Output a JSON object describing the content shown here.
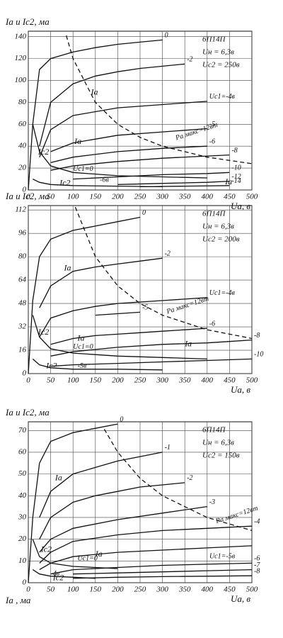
{
  "chart_data": [
    {
      "type": "line",
      "ylabel": "Ia и Ic2, ма",
      "xlabel": "Ua, в",
      "info": [
        "6П14П",
        "Uн = 6,3в",
        "Uc2 = 250в"
      ],
      "xlim": [
        0,
        500
      ],
      "ylim": [
        0,
        145
      ],
      "xticks": [
        0,
        50,
        100,
        150,
        200,
        250,
        300,
        350,
        400,
        450,
        500
      ],
      "yticks": [
        0,
        20,
        40,
        60,
        80,
        100,
        120,
        140
      ],
      "grid": true,
      "series": [
        {
          "name": "0",
          "color": "#111",
          "x": [
            0,
            10,
            25,
            50,
            100,
            150,
            200,
            250,
            300
          ],
          "values": [
            0,
            60,
            110,
            120,
            126,
            130,
            133,
            135,
            137
          ]
        },
        {
          "name": "-2",
          "color": "#111",
          "x": [
            25,
            50,
            100,
            150,
            200,
            250,
            300,
            350
          ],
          "values": [
            40,
            80,
            97,
            104,
            108,
            111,
            113,
            115
          ]
        },
        {
          "name": "Uc1=-4в",
          "color": "#111",
          "x": [
            25,
            50,
            100,
            200,
            300,
            400
          ],
          "values": [
            30,
            55,
            68,
            75,
            78,
            81
          ]
        },
        {
          "name": "-5",
          "color": "#111",
          "x": [
            50,
            100,
            200,
            300,
            400
          ],
          "values": [
            35,
            43,
            50,
            53,
            56
          ]
        },
        {
          "name": "-6",
          "color": "#111",
          "x": [
            50,
            100,
            200,
            300,
            400
          ],
          "values": [
            25,
            30,
            35,
            38,
            40
          ]
        },
        {
          "name": "-8",
          "color": "#111",
          "x": [
            50,
            100,
            200,
            300,
            400,
            450
          ],
          "values": [
            18,
            22,
            26,
            29,
            31,
            32
          ]
        },
        {
          "name": "-10",
          "color": "#111",
          "x": [
            100,
            200,
            300,
            400,
            450
          ],
          "values": [
            10,
            12,
            14,
            15,
            16
          ]
        },
        {
          "name": "-12",
          "color": "#111",
          "x": [
            200,
            300,
            400,
            450
          ],
          "values": [
            5,
            6,
            7,
            8
          ]
        },
        {
          "name": "-14",
          "color": "#111",
          "x": [
            250,
            350,
            450
          ],
          "values": [
            3,
            3.5,
            4
          ]
        },
        {
          "name": "Uc1=0",
          "color": "#111",
          "x": [
            10,
            25,
            50,
            100,
            200,
            300,
            400
          ],
          "values": [
            60,
            35,
            22,
            16,
            13,
            12,
            11
          ]
        },
        {
          "name": "-6в",
          "color": "#111",
          "x": [
            10,
            25,
            50,
            100,
            200,
            300
          ],
          "values": [
            10,
            7,
            5,
            4,
            3.5,
            3
          ]
        },
        {
          "name": "Pa макс=12вт",
          "color": "#111",
          "dashed": true,
          "x": [
            85,
            100,
            150,
            200,
            250,
            300,
            400,
            500
          ],
          "values": [
            141,
            120,
            80,
            60,
            48,
            40,
            30,
            24
          ]
        }
      ],
      "annotations": [
        "Ia",
        "Ia",
        "Ia",
        "Ic2",
        "Ic2"
      ]
    },
    {
      "type": "line",
      "ylabel": "Ia и Ic2, ма",
      "xlabel": "Ua, в",
      "info": [
        "6П14П",
        "Uн = 6,3в",
        "Uc2 = 200в"
      ],
      "xlim": [
        0,
        500
      ],
      "ylim": [
        0,
        115
      ],
      "xticks": [
        0,
        50,
        100,
        150,
        200,
        250,
        300,
        350,
        400,
        450,
        500
      ],
      "yticks": [
        0,
        16,
        32,
        48,
        64,
        80,
        96,
        112
      ],
      "grid": true,
      "series": [
        {
          "name": "0",
          "color": "#111",
          "x": [
            0,
            10,
            25,
            50,
            100,
            150,
            200,
            250
          ],
          "values": [
            0,
            50,
            80,
            92,
            98,
            101,
            104,
            107
          ]
        },
        {
          "name": "-2",
          "color": "#111",
          "x": [
            25,
            50,
            100,
            150,
            200,
            250,
            300
          ],
          "values": [
            45,
            60,
            70,
            73,
            75,
            77,
            79
          ]
        },
        {
          "name": "Uc1=-4в",
          "color": "#111",
          "x": [
            25,
            50,
            100,
            150,
            200,
            250,
            300,
            350,
            400
          ],
          "values": [
            25,
            38,
            43,
            46,
            48,
            49,
            50,
            51,
            52
          ]
        },
        {
          "name": "-5",
          "color": "#111",
          "x": [
            150,
            200,
            250
          ],
          "values": [
            40,
            41,
            42
          ]
        },
        {
          "name": "-6",
          "color": "#111",
          "x": [
            50,
            100,
            150,
            200,
            250,
            300,
            350,
            400
          ],
          "values": [
            20,
            24,
            26,
            27,
            28,
            29,
            30,
            31
          ]
        },
        {
          "name": "-8",
          "color": "#111",
          "x": [
            50,
            100,
            200,
            300,
            400,
            450,
            500
          ],
          "values": [
            12,
            15,
            18,
            20,
            21,
            22,
            23
          ]
        },
        {
          "name": "-10",
          "color": "#111",
          "x": [
            50,
            100,
            200,
            300,
            400,
            500
          ],
          "values": [
            5,
            6,
            7,
            8,
            9,
            10
          ]
        },
        {
          "name": "Uc1=0",
          "color": "#111",
          "x": [
            10,
            25,
            50,
            100,
            200,
            300,
            400
          ],
          "values": [
            40,
            25,
            17,
            14,
            12,
            11,
            10
          ]
        },
        {
          "name": "-5в",
          "color": "#111",
          "x": [
            10,
            25,
            50,
            100,
            200,
            300
          ],
          "values": [
            10,
            6,
            4,
            3,
            3,
            2.5
          ]
        },
        {
          "name": "Pa макс=12вт",
          "color": "#111",
          "dashed": true,
          "x": [
            105,
            150,
            200,
            250,
            300,
            400,
            500
          ],
          "values": [
            114,
            80,
            60,
            48,
            40,
            30,
            24
          ]
        }
      ],
      "annotations": [
        "Ia",
        "Ia",
        "Ia",
        "Ic2",
        "Ic2"
      ]
    },
    {
      "type": "line",
      "ylabel": "Ia и Ic2, ма",
      "xlabel": "Ua, в",
      "ylabel2": "Ia , ма",
      "info": [
        "6П14П",
        "Uн = 6,3в",
        "Uc2 = 150в"
      ],
      "xlim": [
        0,
        500
      ],
      "ylim": [
        0,
        74
      ],
      "xticks": [
        0,
        50,
        100,
        150,
        200,
        250,
        300,
        350,
        400,
        450,
        500
      ],
      "yticks": [
        0,
        10,
        20,
        30,
        40,
        50,
        60,
        70
      ],
      "grid": true,
      "series": [
        {
          "name": "0",
          "color": "#111",
          "x": [
            0,
            10,
            25,
            50,
            100,
            150,
            200
          ],
          "values": [
            0,
            30,
            55,
            65,
            69,
            71,
            73
          ]
        },
        {
          "name": "-1",
          "color": "#111",
          "x": [
            25,
            50,
            100,
            150,
            200,
            250,
            300
          ],
          "values": [
            30,
            42,
            50,
            53,
            56,
            58,
            60
          ]
        },
        {
          "name": "-2",
          "color": "#111",
          "x": [
            25,
            50,
            100,
            150,
            200,
            250,
            300,
            350
          ],
          "values": [
            20,
            30,
            37,
            40,
            42,
            44,
            45,
            46
          ]
        },
        {
          "name": "-3",
          "color": "#111",
          "x": [
            25,
            50,
            100,
            200,
            300,
            400
          ],
          "values": [
            14,
            20,
            25,
            29,
            32,
            35
          ]
        },
        {
          "name": "-4",
          "color": "#111",
          "x": [
            25,
            50,
            100,
            200,
            300,
            400,
            500
          ],
          "values": [
            9,
            14,
            19,
            22,
            24,
            25,
            26
          ]
        },
        {
          "name": "Uc1=-5в",
          "color": "#111",
          "x": [
            25,
            50,
            100,
            200,
            300,
            400,
            500
          ],
          "values": [
            6,
            9,
            12,
            14,
            15,
            16,
            17
          ]
        },
        {
          "name": "-6",
          "color": "#111",
          "x": [
            50,
            100,
            200,
            300,
            400,
            500
          ],
          "values": [
            4,
            6,
            7,
            8,
            8.5,
            9
          ]
        },
        {
          "name": "-7",
          "color": "#111",
          "x": [
            100,
            200,
            300,
            400,
            500
          ],
          "values": [
            4,
            4.5,
            5,
            5.5,
            6
          ]
        },
        {
          "name": "-8",
          "color": "#111",
          "x": [
            100,
            200,
            300,
            400,
            500
          ],
          "values": [
            2,
            2.5,
            2.8,
            3,
            3.2
          ]
        },
        {
          "name": "Uc1=0",
          "color": "#111",
          "x": [
            10,
            25,
            50,
            100,
            150,
            200
          ],
          "values": [
            20,
            12,
            9,
            7.5,
            7,
            6.5
          ]
        },
        {
          "name": "-4в",
          "color": "#111",
          "x": [
            10,
            25,
            50,
            100,
            150
          ],
          "values": [
            6,
            4,
            3,
            2.5,
            2
          ]
        },
        {
          "name": "Pa макс=12вт",
          "color": "#111",
          "dashed": true,
          "x": [
            170,
            200,
            250,
            300,
            400,
            500
          ],
          "values": [
            70.6,
            60,
            48,
            40,
            30,
            24
          ]
        }
      ],
      "annotations": [
        "Ia",
        "Ia",
        "Ic2",
        "Ic2"
      ]
    }
  ]
}
